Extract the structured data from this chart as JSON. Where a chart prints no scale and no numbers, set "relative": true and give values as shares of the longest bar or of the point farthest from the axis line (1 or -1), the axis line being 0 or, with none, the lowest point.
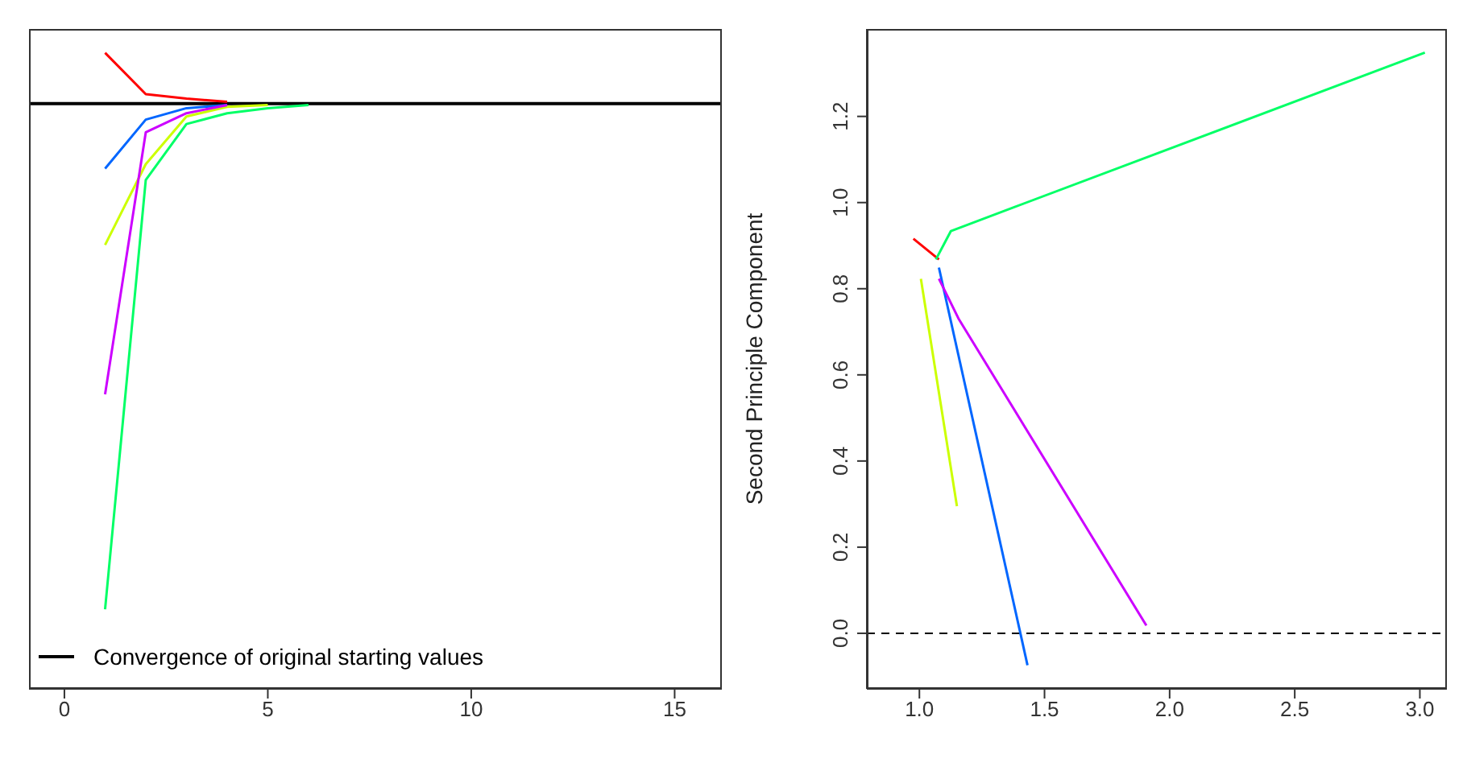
{
  "chart_data": [
    {
      "type": "line",
      "relative": true,
      "x": [
        1,
        2,
        3,
        4,
        5,
        6
      ],
      "xlim": [
        -0.87,
        16.16
      ],
      "xticks": [
        0,
        5,
        10,
        15
      ],
      "grid": false,
      "marker": "none",
      "line_style": "solid",
      "legend": "bottom left",
      "series": [
        {
          "color": "#ff0000",
          "values": [
            1.0,
            0.935,
            0.928,
            0.923,
            null,
            null
          ]
        },
        {
          "color": "#ccff00",
          "values": [
            0.698,
            0.825,
            0.9,
            0.915,
            0.918,
            null
          ]
        },
        {
          "color": "#00ff66",
          "values": [
            0.125,
            0.8,
            0.888,
            0.905,
            0.913,
            0.918
          ]
        },
        {
          "color": "#0066ff",
          "values": [
            0.818,
            0.895,
            0.913,
            0.918,
            null,
            null
          ]
        },
        {
          "color": "#cc00ff",
          "values": [
            0.463,
            0.875,
            0.905,
            0.918,
            null,
            null
          ]
        }
      ],
      "ref_lines": [
        {
          "axis": "y",
          "value": 0.92,
          "label": "Convergence of original starting values",
          "color": "#000000",
          "line_style": "solid"
        }
      ]
    },
    {
      "type": "line",
      "ylabel": "Second Principle Component",
      "xlim": [
        0.79,
        3.108
      ],
      "ylim": [
        -0.129,
        1.403
      ],
      "xticks": [
        {
          "value": 1,
          "label": "1.0"
        },
        {
          "value": 1.5,
          "label": "1.5"
        },
        {
          "value": 2,
          "label": "2.0"
        },
        {
          "value": 2.5,
          "label": "2.5"
        },
        {
          "value": 3,
          "label": "3.0"
        }
      ],
      "yticks": [
        {
          "value": 0,
          "label": "0.0"
        },
        {
          "value": 0.2,
          "label": "0.2"
        },
        {
          "value": 0.4,
          "label": "0.4"
        },
        {
          "value": 0.6,
          "label": "0.6"
        },
        {
          "value": 0.8,
          "label": "0.8"
        },
        {
          "value": 1,
          "label": "1.0"
        },
        {
          "value": 1.2,
          "label": "1.2"
        }
      ],
      "grid": false,
      "marker": "none",
      "line_style": "solid",
      "series": [
        {
          "color": "#ff0000",
          "x": [
            0.976,
            1.078
          ],
          "values": [
            0.916,
            0.868
          ]
        },
        {
          "color": "#ccff00",
          "x": [
            1.15,
            1.006
          ],
          "values": [
            0.295,
            0.823
          ]
        },
        {
          "color": "#00ff66",
          "x": [
            3.02,
            1.126,
            1.066
          ],
          "values": [
            1.348,
            0.934,
            0.868
          ]
        },
        {
          "color": "#0066ff",
          "x": [
            1.432,
            1.078
          ],
          "values": [
            -0.074,
            0.849
          ]
        },
        {
          "color": "#cc00ff",
          "x": [
            1.907,
            1.156,
            1.078
          ],
          "values": [
            0.018,
            0.731,
            0.823
          ]
        }
      ],
      "ref_lines": [
        {
          "axis": "y",
          "value": 0,
          "color": "#000000",
          "line_style": "dashed"
        }
      ]
    }
  ]
}
